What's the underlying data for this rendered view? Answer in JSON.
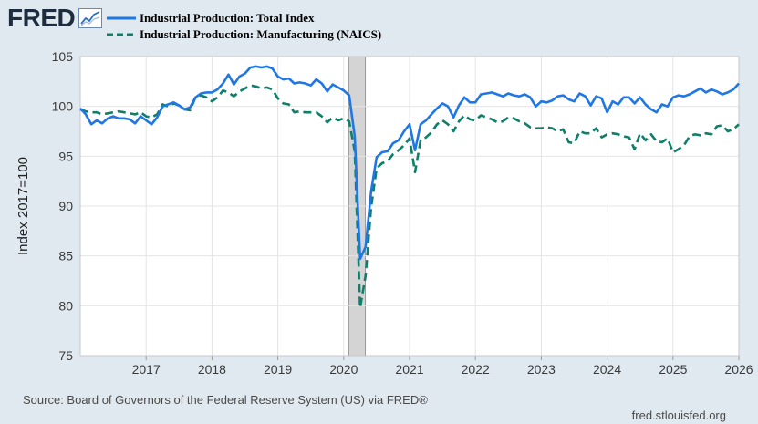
{
  "brand": {
    "logo_text": "FRED",
    "icon": "line-graph-icon"
  },
  "legend": [
    {
      "label": "Industrial Production: Total Index",
      "color": "#1f77e4",
      "style": "solid"
    },
    {
      "label": "Industrial Production: Manufacturing (NAICS)",
      "color": "#0f7f6a",
      "style": "dashed"
    }
  ],
  "footer": {
    "source": "Source: Board of Governors of the Federal Reserve System (US) via FRED®",
    "site": "fred.stlouisfed.org"
  },
  "chart_data": {
    "type": "line",
    "title": "",
    "xlabel": "",
    "ylabel": "Index 2017=100",
    "xlim": [
      2016.0,
      2026.0
    ],
    "ylim": [
      75,
      105
    ],
    "x_ticks": [
      "2017",
      "2018",
      "2019",
      "2020",
      "2021",
      "2022",
      "2023",
      "2024",
      "2025",
      "2026"
    ],
    "y_ticks": [
      "75",
      "80",
      "85",
      "90",
      "95",
      "100",
      "105"
    ],
    "grid": true,
    "recession_shading": [
      [
        2020.08,
        2020.33
      ]
    ],
    "series": [
      {
        "name": "Industrial Production: Total Index",
        "color": "#1f77e4",
        "style": "solid",
        "x": [
          2016.0,
          2016.083,
          2016.167,
          2016.25,
          2016.333,
          2016.417,
          2016.5,
          2016.583,
          2016.667,
          2016.75,
          2016.833,
          2016.917,
          2017.0,
          2017.083,
          2017.167,
          2017.25,
          2017.333,
          2017.417,
          2017.5,
          2017.583,
          2017.667,
          2017.75,
          2017.833,
          2017.917,
          2018.0,
          2018.083,
          2018.167,
          2018.25,
          2018.333,
          2018.417,
          2018.5,
          2018.583,
          2018.667,
          2018.75,
          2018.833,
          2018.917,
          2019.0,
          2019.083,
          2019.167,
          2019.25,
          2019.333,
          2019.417,
          2019.5,
          2019.583,
          2019.667,
          2019.75,
          2019.833,
          2019.917,
          2020.0,
          2020.083,
          2020.167,
          2020.25,
          2020.333,
          2020.417,
          2020.5,
          2020.583,
          2020.667,
          2020.75,
          2020.833,
          2020.917,
          2021.0,
          2021.083,
          2021.167,
          2021.25,
          2021.333,
          2021.417,
          2021.5,
          2021.583,
          2021.667,
          2021.75,
          2021.833,
          2021.917,
          2022.0,
          2022.083,
          2022.167,
          2022.25,
          2022.333,
          2022.417,
          2022.5,
          2022.583,
          2022.667,
          2022.75,
          2022.833,
          2022.917,
          2023.0,
          2023.083,
          2023.167,
          2023.25,
          2023.333,
          2023.417,
          2023.5,
          2023.583,
          2023.667,
          2023.75,
          2023.833,
          2023.917,
          2024.0,
          2024.083,
          2024.167,
          2024.25,
          2024.333,
          2024.417,
          2024.5,
          2024.583,
          2024.667,
          2024.75,
          2024.833,
          2024.917,
          2025.0,
          2025.083,
          2025.167,
          2025.25,
          2025.333,
          2025.417,
          2025.5,
          2025.583,
          2025.667,
          2025.75,
          2025.833,
          2025.917,
          2026.0
        ],
        "values": [
          99.8,
          99.2,
          98.2,
          98.6,
          98.3,
          98.8,
          99.0,
          98.8,
          98.8,
          98.7,
          98.3,
          99.0,
          98.6,
          98.2,
          98.9,
          100.0,
          100.2,
          100.4,
          100.1,
          99.7,
          99.9,
          100.9,
          101.3,
          101.4,
          101.4,
          101.7,
          102.3,
          103.2,
          102.2,
          103.0,
          103.3,
          103.9,
          104.0,
          103.9,
          104.0,
          103.8,
          103.0,
          102.7,
          102.8,
          102.3,
          102.4,
          102.3,
          102.1,
          102.7,
          102.3,
          101.5,
          102.2,
          101.9,
          101.6,
          101.1,
          97.0,
          84.7,
          85.9,
          91.5,
          94.9,
          95.4,
          95.5,
          96.3,
          96.6,
          97.5,
          98.2,
          95.6,
          98.2,
          98.6,
          99.2,
          99.8,
          100.3,
          100.0,
          98.9,
          100.1,
          100.9,
          100.4,
          100.4,
          101.2,
          101.3,
          101.4,
          101.2,
          101.0,
          101.3,
          101.1,
          101.0,
          101.2,
          100.9,
          100.0,
          100.5,
          100.4,
          100.6,
          101.0,
          101.1,
          100.7,
          100.5,
          101.3,
          101.0,
          100.1,
          101.0,
          100.8,
          99.4,
          100.5,
          100.2,
          100.9,
          100.9,
          100.3,
          100.9,
          100.2,
          99.7,
          99.4,
          100.2,
          100.0,
          100.9,
          101.1,
          101.0,
          101.2,
          101.5,
          101.8,
          101.4,
          101.7,
          101.5,
          101.2,
          101.4,
          101.7,
          102.3
        ]
      },
      {
        "name": "Industrial Production: Manufacturing (NAICS)",
        "color": "#0f7f6a",
        "style": "dashed",
        "x": [
          2016.0,
          2016.083,
          2016.167,
          2016.25,
          2016.333,
          2016.417,
          2016.5,
          2016.583,
          2016.667,
          2016.75,
          2016.833,
          2016.917,
          2017.0,
          2017.083,
          2017.167,
          2017.25,
          2017.333,
          2017.417,
          2017.5,
          2017.583,
          2017.667,
          2017.75,
          2017.833,
          2017.917,
          2018.0,
          2018.083,
          2018.167,
          2018.25,
          2018.333,
          2018.417,
          2018.5,
          2018.583,
          2018.667,
          2018.75,
          2018.833,
          2018.917,
          2019.0,
          2019.083,
          2019.167,
          2019.25,
          2019.333,
          2019.417,
          2019.5,
          2019.583,
          2019.667,
          2019.75,
          2019.833,
          2019.917,
          2020.0,
          2020.083,
          2020.167,
          2020.25,
          2020.333,
          2020.417,
          2020.5,
          2020.583,
          2020.667,
          2020.75,
          2020.833,
          2020.917,
          2021.0,
          2021.083,
          2021.167,
          2021.25,
          2021.333,
          2021.417,
          2021.5,
          2021.583,
          2021.667,
          2021.75,
          2021.833,
          2021.917,
          2022.0,
          2022.083,
          2022.167,
          2022.25,
          2022.333,
          2022.417,
          2022.5,
          2022.583,
          2022.667,
          2022.75,
          2022.833,
          2022.917,
          2023.0,
          2023.083,
          2023.167,
          2023.25,
          2023.333,
          2023.417,
          2023.5,
          2023.583,
          2023.667,
          2023.75,
          2023.833,
          2023.917,
          2024.0,
          2024.083,
          2024.167,
          2024.25,
          2024.333,
          2024.417,
          2024.5,
          2024.583,
          2024.667,
          2024.75,
          2024.833,
          2024.917,
          2025.0,
          2025.083,
          2025.167,
          2025.25,
          2025.333,
          2025.417,
          2025.5,
          2025.583,
          2025.667,
          2025.75,
          2025.833,
          2025.917,
          2026.0
        ],
        "values": [
          99.7,
          99.5,
          99.4,
          99.4,
          99.2,
          99.3,
          99.4,
          99.5,
          99.4,
          99.3,
          99.2,
          99.4,
          99.0,
          98.9,
          99.2,
          100.2,
          100.0,
          100.3,
          100.1,
          99.7,
          99.6,
          100.9,
          101.1,
          100.9,
          100.5,
          100.9,
          101.6,
          101.4,
          101.0,
          101.5,
          101.8,
          102.1,
          102.0,
          101.8,
          101.9,
          101.7,
          100.8,
          100.3,
          100.2,
          99.4,
          99.5,
          99.4,
          99.4,
          99.4,
          99.0,
          98.4,
          98.9,
          98.6,
          98.8,
          98.5,
          95.5,
          79.8,
          83.0,
          89.9,
          93.8,
          94.3,
          94.5,
          95.2,
          95.6,
          96.1,
          96.8,
          93.4,
          96.6,
          96.9,
          97.4,
          98.2,
          98.6,
          98.2,
          97.5,
          98.5,
          99.1,
          98.7,
          98.6,
          99.1,
          98.9,
          98.7,
          98.4,
          98.5,
          98.9,
          98.8,
          98.5,
          98.3,
          97.9,
          97.8,
          97.8,
          97.9,
          97.8,
          97.5,
          97.7,
          96.4,
          96.3,
          97.5,
          97.3,
          97.3,
          97.8,
          96.9,
          97.2,
          97.3,
          97.2,
          97.0,
          96.9,
          95.7,
          97.3,
          96.6,
          97.2,
          96.5,
          96.4,
          96.8,
          95.4,
          95.7,
          96.1,
          97.0,
          97.2,
          97.1,
          97.3,
          97.2,
          98.0,
          98.1,
          97.5,
          97.7,
          98.2
        ]
      }
    ]
  }
}
